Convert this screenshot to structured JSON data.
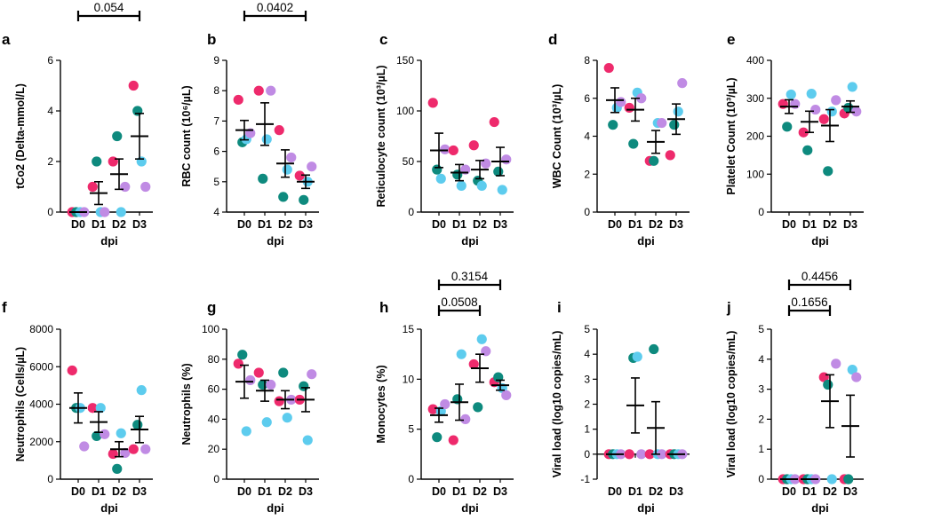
{
  "colors": {
    "c1": "#EE2A6C",
    "c2": "#0E8A7E",
    "c3": "#5DCCEE",
    "c4": "#C08BE4"
  },
  "chart_data": [
    {
      "type": "scatter",
      "panel": "a",
      "ylabel": "tCo2 (Delta-mmol/L)",
      "ylim": [
        0,
        6
      ],
      "yticks": [
        0,
        2,
        4,
        6
      ],
      "xlabel": "dpi",
      "categories": [
        "D0",
        "D1",
        "D2",
        "D3"
      ],
      "points": [
        [
          0,
          0,
          0,
          0
        ],
        [
          1,
          2,
          0,
          0
        ],
        [
          2,
          3,
          0,
          1
        ],
        [
          5,
          4,
          2,
          1
        ]
      ],
      "mean": [
        0,
        0.75,
        1.5,
        3
      ],
      "sem": [
        0,
        0.45,
        0.6,
        0.9
      ],
      "pvalues": [
        {
          "from": 0,
          "to": 3,
          "label": "0.054"
        }
      ]
    },
    {
      "type": "scatter",
      "panel": "b",
      "ylabel": "RBC count (10⁶/µL)",
      "ylim": [
        4,
        9
      ],
      "yticks": [
        4,
        5,
        6,
        7,
        8,
        9
      ],
      "xlabel": "dpi",
      "categories": [
        "D0",
        "D1",
        "D2",
        "D3"
      ],
      "points": [
        [
          7.7,
          6.3,
          6.4,
          6.6
        ],
        [
          8.0,
          5.1,
          6.4,
          8.0
        ],
        [
          6.7,
          4.5,
          5.4,
          5.8
        ],
        [
          5.2,
          4.4,
          5.0,
          5.5
        ]
      ],
      "mean": [
        6.7,
        6.9,
        5.6,
        5.0
      ],
      "sem": [
        0.32,
        0.7,
        0.45,
        0.22
      ],
      "pvalues": [
        {
          "from": 0,
          "to": 3,
          "label": "0.0402"
        }
      ]
    },
    {
      "type": "scatter",
      "panel": "c",
      "ylabel": "Reticulocyte count (10³/µL)",
      "ylim": [
        0,
        150
      ],
      "yticks": [
        0,
        50,
        100,
        150
      ],
      "xlabel": "dpi",
      "categories": [
        "D0",
        "D1",
        "D2",
        "D3"
      ],
      "points": [
        [
          108,
          42,
          33,
          62
        ],
        [
          61,
          37,
          26,
          42
        ],
        [
          66,
          31,
          26,
          48
        ],
        [
          89,
          40,
          22,
          52
        ]
      ],
      "mean": [
        61,
        39,
        42,
        50
      ],
      "sem": [
        17,
        8,
        9,
        14
      ],
      "pvalues": []
    },
    {
      "type": "scatter",
      "panel": "d",
      "ylabel": "WBC Count (10³/µL)",
      "ylim": [
        0,
        8
      ],
      "yticks": [
        0,
        2,
        4,
        6,
        8
      ],
      "xlabel": "dpi",
      "categories": [
        "D0",
        "D1",
        "D2",
        "D3"
      ],
      "points": [
        [
          7.6,
          4.6,
          5.5,
          5.8
        ],
        [
          5.5,
          3.6,
          6.3,
          6.0
        ],
        [
          2.7,
          2.7,
          4.7,
          4.7
        ],
        [
          3.0,
          4.6,
          5.3,
          6.8
        ]
      ],
      "mean": [
        5.9,
        5.4,
        3.7,
        4.9
      ],
      "sem": [
        0.65,
        0.6,
        0.6,
        0.8
      ],
      "pvalues": []
    },
    {
      "type": "scatter",
      "panel": "e",
      "ylabel": "Platelet Count (10³/µL)",
      "ylim": [
        0,
        400
      ],
      "yticks": [
        0,
        100,
        200,
        300,
        400
      ],
      "xlabel": "dpi",
      "categories": [
        "D0",
        "D1",
        "D2",
        "D3"
      ],
      "points": [
        [
          285,
          225,
          310,
          285
        ],
        [
          210,
          163,
          312,
          270
        ],
        [
          245,
          108,
          265,
          295
        ],
        [
          260,
          275,
          330,
          265
        ]
      ],
      "mean": [
        278,
        238,
        228,
        278
      ],
      "sem": [
        18,
        28,
        42,
        15
      ],
      "pvalues": []
    },
    {
      "type": "scatter",
      "panel": "f",
      "ylabel": "Neutrophils (Cells/µL)",
      "ylim": [
        0,
        8000
      ],
      "yticks": [
        0,
        2000,
        4000,
        6000,
        8000
      ],
      "xlabel": "dpi",
      "categories": [
        "D0",
        "D1",
        "D2",
        "D3"
      ],
      "points": [
        [
          5800,
          3800,
          3800,
          1750
        ],
        [
          3800,
          2300,
          3800,
          2400
        ],
        [
          1350,
          550,
          2450,
          1400
        ],
        [
          1600,
          2900,
          4750,
          1600
        ]
      ],
      "mean": [
        3800,
        3050,
        1600,
        2650
      ],
      "sem": [
        800,
        550,
        400,
        700
      ],
      "pvalues": []
    },
    {
      "type": "scatter",
      "panel": "g",
      "ylabel": "Neutrophils (%)",
      "ylim": [
        0,
        100
      ],
      "yticks": [
        0,
        20,
        40,
        60,
        80,
        100
      ],
      "xlabel": "dpi",
      "categories": [
        "D0",
        "D1",
        "D2",
        "D3"
      ],
      "points": [
        [
          77,
          83,
          32,
          66
        ],
        [
          71,
          63,
          38,
          63
        ],
        [
          52,
          71,
          41,
          53
        ],
        [
          53,
          62,
          26,
          70
        ]
      ],
      "mean": [
        65,
        59,
        53,
        53
      ],
      "sem": [
        11,
        7,
        6,
        8
      ],
      "pvalues": []
    },
    {
      "type": "scatter",
      "panel": "h",
      "ylabel": "Monocytes (%)",
      "ylim": [
        0,
        15
      ],
      "yticks": [
        0,
        5,
        10,
        15
      ],
      "xlabel": "dpi",
      "categories": [
        "D0",
        "D1",
        "D2",
        "D3"
      ],
      "points": [
        [
          7,
          4.2,
          6.8,
          7.5
        ],
        [
          3.9,
          8.0,
          12.5,
          6.0
        ],
        [
          11.5,
          7.2,
          14.0,
          12.8
        ],
        [
          9.7,
          10.2,
          9.1,
          8.4
        ]
      ],
      "mean": [
        6.4,
        7.7,
        11.1,
        9.4
      ],
      "sem": [
        0.7,
        1.8,
        1.4,
        0.5
      ],
      "pvalues": [
        {
          "from": 0,
          "to": 2,
          "label": "0.0508"
        },
        {
          "from": 0,
          "to": 3,
          "label": "0.3154"
        }
      ]
    },
    {
      "type": "scatter",
      "panel": "i",
      "ylabel": "Viral load (log10 copies/mL)",
      "ylim": [
        -1,
        5
      ],
      "yticks": [
        -1,
        0,
        1,
        2,
        3,
        4,
        5
      ],
      "xlabel": "dpi",
      "categories": [
        "D0",
        "D1",
        "D2",
        "D3"
      ],
      "points": [
        [
          0,
          0,
          0,
          0
        ],
        [
          0,
          3.85,
          3.9,
          0
        ],
        [
          0,
          4.2,
          0,
          0
        ],
        [
          0,
          0,
          0,
          0
        ]
      ],
      "mean": [
        0,
        1.95,
        1.05,
        0
      ],
      "sem": [
        0,
        1.1,
        1.05,
        0
      ],
      "pvalues": []
    },
    {
      "type": "scatter",
      "panel": "j",
      "ylabel": "Viral load (log10 copies/mL)",
      "ylim": [
        0,
        5
      ],
      "yticks": [
        0,
        1,
        2,
        3,
        4,
        5
      ],
      "xlabel": "dpi",
      "categories": [
        "D0",
        "D1",
        "D2",
        "D3"
      ],
      "points": [
        [
          0,
          0,
          0,
          0
        ],
        [
          0,
          0,
          0,
          0
        ],
        [
          3.4,
          3.15,
          0,
          3.85
        ],
        [
          0,
          0,
          3.65,
          3.4
        ]
      ],
      "mean": [
        0,
        0,
        2.6,
        1.77
      ],
      "sem": [
        0,
        0,
        0.88,
        1.03
      ],
      "pvalues": [
        {
          "from": 0,
          "to": 2,
          "label": "0.1656"
        },
        {
          "from": 0,
          "to": 3,
          "label": "0.4456"
        }
      ]
    }
  ]
}
